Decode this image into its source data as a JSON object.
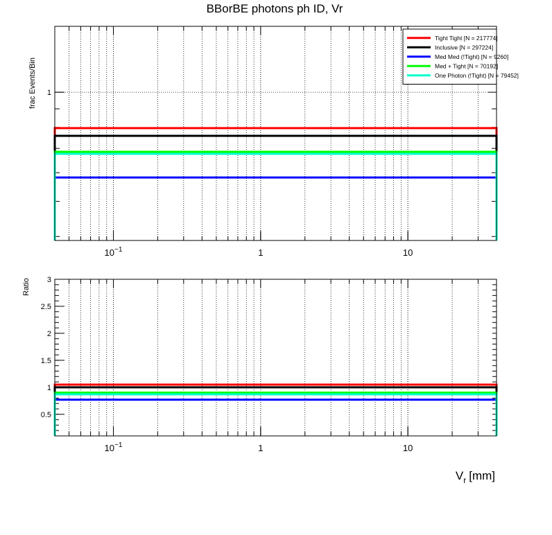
{
  "chart_data": [
    {
      "type": "histogram",
      "title": "BBorBE photons ph ID, Vr",
      "y_label": "frac Events/Bin",
      "log_x": true,
      "log_y": true,
      "grid": true,
      "bins": [
        0.04,
        40
      ],
      "xlim": [
        0.04,
        40
      ],
      "ylim": [
        0.39,
        1.52
      ],
      "xticks": [
        {
          "value": 0.1,
          "label": "10",
          "exponent": "−1"
        },
        1,
        10
      ],
      "yticks": [
        1
      ],
      "legend": "upper right",
      "series": [
        {
          "name": "Tight Tight [N = 217774]",
          "color": "#ff0000",
          "values": [
            0.796
          ]
        },
        {
          "name": "Inclusive [N = 297224]",
          "color": "#000000",
          "values": [
            0.758
          ]
        },
        {
          "name": "Med Med (!Tight) [N = 9260]",
          "color": "#0000ff",
          "values": [
            0.582
          ]
        },
        {
          "name": "Med + Tight [N = 70192]",
          "color": "#00ff00",
          "values": [
            0.685
          ]
        },
        {
          "name": "One Photon (!Tight) [N = 79452]",
          "color": "#00ffcc",
          "values": [
            0.676
          ]
        }
      ]
    },
    {
      "type": "histogram",
      "y_label": "Ratio",
      "x_label": {
        "main": "V",
        "sub": "r",
        "unit": "[mm]"
      },
      "log_x": true,
      "log_y": false,
      "grid": true,
      "bins": [
        0.04,
        40
      ],
      "xlim": [
        0.04,
        40
      ],
      "ylim": [
        0.1,
        3
      ],
      "xticks": [
        {
          "value": 0.1,
          "label": "10",
          "exponent": "−1"
        },
        1,
        10
      ],
      "yticks": [
        0.5,
        1,
        1.5,
        2,
        2.5,
        3
      ],
      "series": [
        {
          "color": "#ff0000",
          "values": [
            1.05
          ]
        },
        {
          "color": "#000000",
          "values": [
            1.0
          ]
        },
        {
          "color": "#0000ff",
          "values": [
            0.77
          ]
        },
        {
          "color": "#00ff00",
          "values": [
            0.9
          ]
        },
        {
          "color": "#00ffcc",
          "values": [
            0.87
          ]
        }
      ]
    }
  ]
}
